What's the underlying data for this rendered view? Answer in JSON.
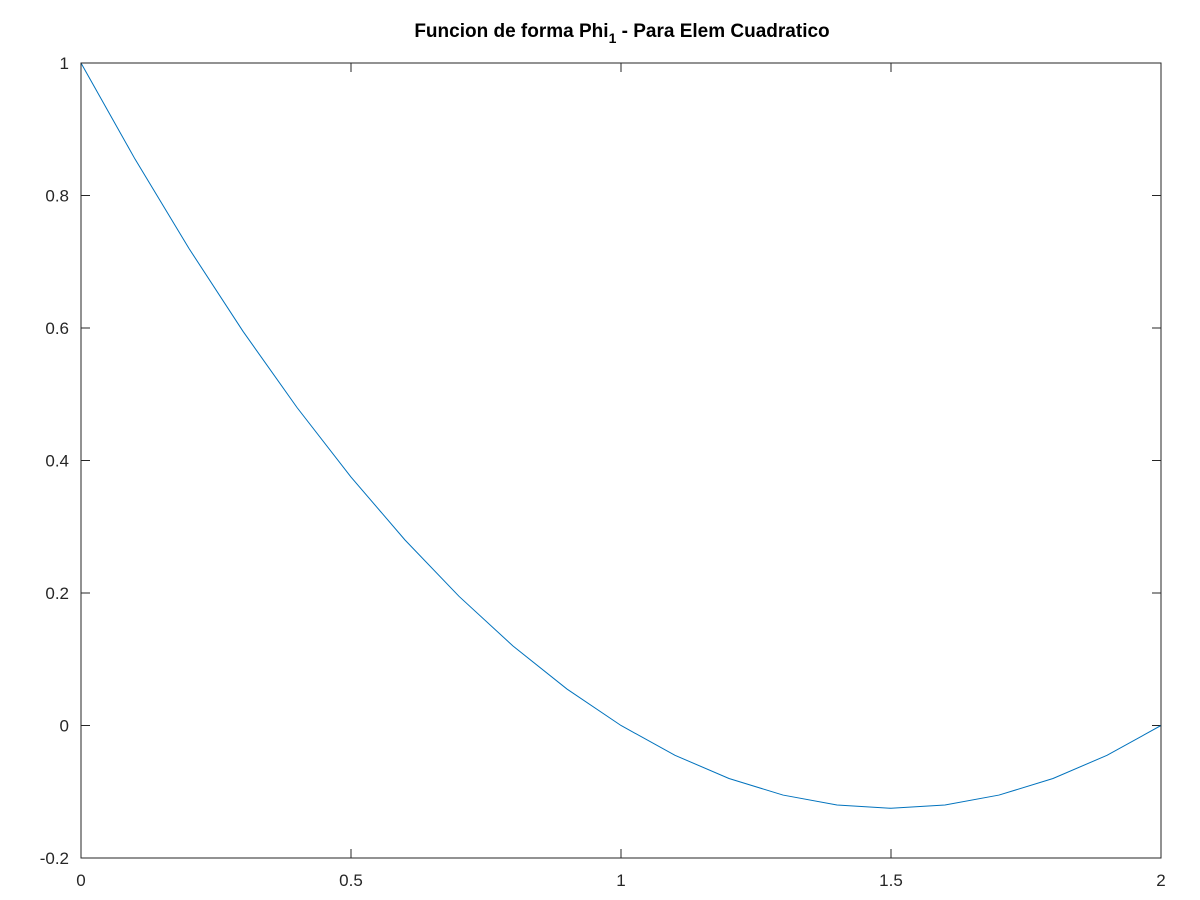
{
  "chart_data": {
    "type": "line",
    "title": {
      "main": "Funcion de forma Phi",
      "subscript": "1",
      "suffix": " - Para Elem Cuadratico"
    },
    "xlabel": "",
    "ylabel": "",
    "xlim": [
      0,
      2
    ],
    "ylim": [
      -0.2,
      1
    ],
    "xticks": [
      0,
      0.5,
      1,
      1.5,
      2
    ],
    "xtick_labels": [
      "0",
      "0.5",
      "1",
      "1.5",
      "2"
    ],
    "yticks": [
      -0.2,
      0,
      0.2,
      0.4,
      0.6,
      0.8,
      1
    ],
    "ytick_labels": [
      "-0.2",
      "0",
      "0.2",
      "0.4",
      "0.6",
      "0.8",
      "1"
    ],
    "grid": false,
    "series": [
      {
        "color": "#0072bd",
        "x": [
          0,
          0.1,
          0.2,
          0.3,
          0.4,
          0.5,
          0.6,
          0.7,
          0.8,
          0.9,
          1.0,
          1.1,
          1.2,
          1.3,
          1.4,
          1.5,
          1.6,
          1.7,
          1.8,
          1.9,
          2.0
        ],
        "y": [
          1.0,
          0.855,
          0.72,
          0.595,
          0.48,
          0.375,
          0.28,
          0.195,
          0.12,
          0.055,
          0.0,
          -0.045,
          -0.08,
          -0.105,
          -0.12,
          -0.125,
          -0.12,
          -0.105,
          -0.08,
          -0.045,
          0.0
        ]
      }
    ]
  }
}
